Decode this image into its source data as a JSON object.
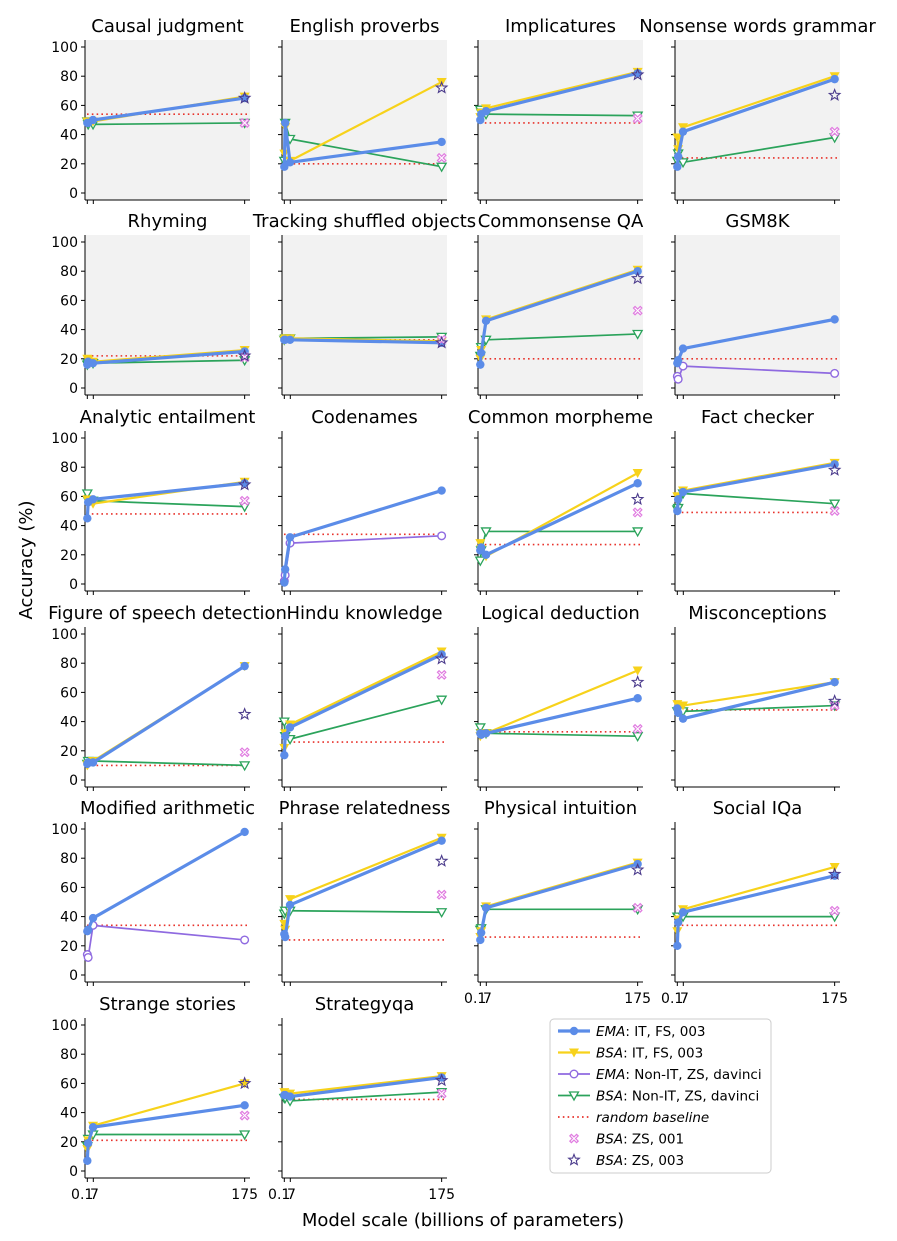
{
  "colors": {
    "ema_it": "#5b8ce8",
    "bsa_it": "#f7d21b",
    "ema_non": "#8f6ae0",
    "bsa_non": "#2ba35b",
    "random": "#e8322b",
    "zs001": "#e07be0",
    "zs003": "#4b3b8c",
    "panel_bg": "#f2f2f2"
  },
  "labels": {
    "ylabel": "Accuracy (%)",
    "xlabel": "Model scale (billions of parameters)",
    "x_ticks": [
      "0.1",
      "7",
      "175"
    ]
  },
  "legend": {
    "entries": [
      {
        "key": "ema_it",
        "italic": "EMA",
        "rest": ": IT, FS, 003"
      },
      {
        "key": "bsa_it",
        "italic": "BSA",
        "rest": ": IT, FS, 003"
      },
      {
        "key": "ema_non",
        "italic": "EMA",
        "rest": ": Non-IT, ZS, davinci"
      },
      {
        "key": "bsa_non",
        "italic": "BSA",
        "rest": ": Non-IT, ZS, davinci"
      },
      {
        "key": "random",
        "italic": "random baseline",
        "rest": ""
      },
      {
        "key": "zs001",
        "italic": "BSA",
        "rest": ": ZS, 001"
      },
      {
        "key": "zs003",
        "italic": "BSA",
        "rest": ": ZS, 003"
      }
    ]
  },
  "chart_data": {
    "type": "line",
    "x": [
      0.35,
      1.3,
      6.7,
      175
    ],
    "x_ticks": [
      0.1,
      7,
      175
    ],
    "ylim": [
      0,
      100
    ],
    "y_ticks": [
      0,
      20,
      40,
      60,
      80,
      100
    ],
    "panels": [
      {
        "title": "Causal judgment",
        "shaded": true,
        "series": {
          "ema_it": [
            48,
            48,
            50,
            65
          ],
          "bsa_it": [
            49,
            49,
            49,
            66
          ],
          "bsa_non": [
            49,
            47,
            47,
            48
          ]
        },
        "random": 54,
        "zs001": 48,
        "zs003": 65
      },
      {
        "title": "English proverbs",
        "shaded": true,
        "series": {
          "ema_it": [
            18,
            48,
            21,
            35
          ],
          "bsa_it": [
            27,
            45,
            22,
            76
          ],
          "bsa_non": [
            22,
            48,
            37,
            18
          ]
        },
        "random": 20,
        "zs001": 24,
        "zs003": 72
      },
      {
        "title": "Implicatures",
        "shaded": true,
        "series": {
          "ema_it": [
            50,
            54,
            56,
            82
          ],
          "bsa_it": [
            52,
            55,
            58,
            83
          ],
          "bsa_non": [
            57,
            55,
            54,
            53
          ]
        },
        "random": 48,
        "zs001": 51,
        "zs003": 81
      },
      {
        "title": "Nonsense words grammar",
        "shaded": true,
        "series": {
          "ema_it": [
            18,
            25,
            42,
            78
          ],
          "bsa_it": [
            38,
            30,
            45,
            80
          ],
          "bsa_non": [
            22,
            27,
            21,
            38
          ]
        },
        "random": 24,
        "zs001": 42,
        "zs003": 67
      },
      {
        "title": "Rhyming",
        "shaded": true,
        "series": {
          "ema_it": [
            16,
            18,
            17,
            25
          ],
          "bsa_it": [
            20,
            19,
            18,
            26
          ],
          "bsa_non": [
            16,
            17,
            17,
            19
          ]
        },
        "random": 22,
        "zs001": 21,
        "zs003": 22
      },
      {
        "title": "Tracking shuffled objects",
        "shaded": true,
        "series": {
          "ema_it": [
            33,
            33,
            33,
            31
          ],
          "bsa_it": [
            33,
            34,
            34,
            32
          ],
          "bsa_non": [
            33,
            34,
            34,
            35
          ]
        },
        "random": 33,
        "zs001": 33,
        "zs003": 31
      },
      {
        "title": "Commonsense QA",
        "shaded": true,
        "series": {
          "ema_it": [
            16,
            24,
            46,
            80
          ],
          "bsa_it": [
            20,
            26,
            47,
            81
          ],
          "bsa_non": [
            22,
            28,
            33,
            37
          ]
        },
        "random": 20,
        "zs001": 53,
        "zs003": 75
      },
      {
        "title": "GSM8K",
        "shaded": true,
        "series": {
          "ema_it": [
            17,
            19,
            27,
            47
          ],
          "ema_non": [
            8,
            6,
            15,
            10
          ]
        },
        "random": 20
      },
      {
        "title": "Analytic entailment",
        "shaded": false,
        "series": {
          "ema_it": [
            45,
            56,
            58,
            69
          ],
          "bsa_it": [
            58,
            57,
            55,
            70
          ],
          "bsa_non": [
            62,
            57,
            57,
            53
          ]
        },
        "random": 48,
        "zs001": 57,
        "zs003": 68
      },
      {
        "title": "Codenames",
        "shaded": false,
        "series": {
          "ema_it": [
            1,
            10,
            32,
            64
          ],
          "ema_non": [
            2,
            6,
            28,
            33
          ]
        },
        "random": 34
      },
      {
        "title": "Common morpheme",
        "shaded": false,
        "series": {
          "ema_it": [
            23,
            25,
            20,
            69
          ],
          "bsa_it": [
            28,
            24,
            19,
            76
          ],
          "bsa_non": [
            16,
            23,
            36,
            36
          ]
        },
        "random": 27,
        "zs001": 49,
        "zs003": 58
      },
      {
        "title": "Fact checker",
        "shaded": false,
        "series": {
          "ema_it": [
            50,
            58,
            63,
            82
          ],
          "bsa_it": [
            60,
            60,
            64,
            83
          ],
          "bsa_non": [
            51,
            52,
            62,
            55
          ]
        },
        "random": 49,
        "zs001": 50,
        "zs003": 78
      },
      {
        "title": "Figure of speech detection",
        "shaded": false,
        "series": {
          "ema_it": [
            11,
            12,
            12,
            78
          ],
          "bsa_it": [
            10,
            11,
            13,
            78
          ],
          "bsa_non": [
            11,
            13,
            13,
            10
          ]
        },
        "random": 10,
        "zs001": 19,
        "zs003": 45
      },
      {
        "title": "Hindu knowledge",
        "shaded": false,
        "series": {
          "ema_it": [
            17,
            30,
            36,
            86
          ],
          "bsa_it": [
            22,
            32,
            38,
            88
          ],
          "bsa_non": [
            40,
            30,
            28,
            55
          ]
        },
        "random": 26,
        "zs001": 72,
        "zs003": 83
      },
      {
        "title": "Logical deduction",
        "shaded": false,
        "series": {
          "ema_it": [
            32,
            31,
            32,
            56
          ],
          "bsa_it": [
            30,
            32,
            32,
            75
          ],
          "bsa_non": [
            36,
            32,
            32,
            30
          ]
        },
        "random": 33,
        "zs001": 35,
        "zs003": 67
      },
      {
        "title": "Misconceptions",
        "shaded": false,
        "series": {
          "ema_it": [
            49,
            46,
            42,
            67
          ],
          "bsa_it": [
            52,
            51,
            51,
            67
          ],
          "bsa_non": [
            47,
            47,
            47,
            51
          ]
        },
        "random": 48,
        "zs001": 51,
        "zs003": 54
      },
      {
        "title": "Modified arithmetic",
        "shaded": false,
        "series": {
          "ema_it": [
            30,
            31,
            39,
            98
          ],
          "ema_non": [
            14,
            12,
            34,
            24
          ]
        },
        "random": 34
      },
      {
        "title": "Phrase relatedness",
        "shaded": false,
        "series": {
          "ema_it": [
            28,
            26,
            48,
            92
          ],
          "bsa_it": [
            35,
            31,
            52,
            94
          ],
          "bsa_non": [
            42,
            44,
            44,
            43
          ]
        },
        "random": 24,
        "zs001": 55,
        "zs003": 78
      },
      {
        "title": "Physical intuition",
        "shaded": false,
        "series": {
          "ema_it": [
            24,
            29,
            46,
            76
          ],
          "bsa_it": [
            26,
            30,
            47,
            77
          ],
          "bsa_non": [
            31,
            32,
            45,
            45
          ]
        },
        "random": 26,
        "zs001": 46,
        "zs003": 72
      },
      {
        "title": "Social IQa",
        "shaded": false,
        "series": {
          "ema_it": [
            20,
            36,
            43,
            68
          ],
          "bsa_it": [
            30,
            38,
            45,
            74
          ],
          "bsa_non": [
            40,
            40,
            40,
            40
          ]
        },
        "random": 34,
        "zs001": 44,
        "zs003": 69
      },
      {
        "title": "Strange stories",
        "shaded": false,
        "series": {
          "ema_it": [
            7,
            19,
            30,
            45
          ],
          "bsa_it": [
            15,
            21,
            31,
            60
          ],
          "bsa_non": [
            17,
            22,
            25,
            25
          ]
        },
        "random": 21,
        "zs001": 38,
        "zs003": 60
      },
      {
        "title": "Strategyqa",
        "shaded": false,
        "series": {
          "ema_it": [
            52,
            52,
            51,
            64
          ],
          "bsa_it": [
            54,
            53,
            53,
            65
          ],
          "bsa_non": [
            50,
            50,
            48,
            54
          ]
        },
        "random": 49,
        "zs001": 53,
        "zs003": 62
      }
    ]
  }
}
